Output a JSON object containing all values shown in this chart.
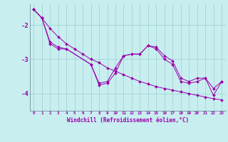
{
  "xlabel": "Windchill (Refroidissement éolien,°C)",
  "background_color": "#c8eef0",
  "grid_color": "#9ecece",
  "line_color": "#9900aa",
  "xlim": [
    -0.5,
    23.5
  ],
  "ylim": [
    -4.5,
    -1.4
  ],
  "yticks": [
    -4,
    -3,
    -2
  ],
  "xticks": [
    0,
    1,
    2,
    3,
    4,
    5,
    6,
    7,
    8,
    9,
    10,
    11,
    12,
    13,
    14,
    15,
    16,
    17,
    18,
    19,
    20,
    21,
    22,
    23
  ],
  "line1_x": [
    0,
    1,
    2,
    3,
    4,
    5,
    6,
    7,
    8,
    9,
    10,
    11,
    12,
    13,
    14,
    15,
    16,
    17,
    18,
    19,
    20,
    21,
    22,
    23
  ],
  "line1_y": [
    -1.55,
    -1.8,
    -2.1,
    -2.35,
    -2.55,
    -2.7,
    -2.85,
    -3.0,
    -3.1,
    -3.25,
    -3.35,
    -3.45,
    -3.55,
    -3.65,
    -3.72,
    -3.8,
    -3.85,
    -3.9,
    -3.95,
    -4.0,
    -4.05,
    -4.1,
    -4.15,
    -4.18
  ],
  "line2_x": [
    0,
    1,
    2,
    3,
    4,
    7,
    8,
    9,
    10,
    11,
    12,
    13,
    14,
    15,
    16,
    17,
    18,
    19,
    20,
    21,
    22,
    23
  ],
  "line2_y": [
    -1.55,
    -1.8,
    -2.5,
    -2.65,
    -2.7,
    -3.15,
    -3.7,
    -3.65,
    -3.25,
    -2.9,
    -2.85,
    -2.85,
    -2.6,
    -2.65,
    -2.9,
    -3.05,
    -3.55,
    -3.65,
    -3.55,
    -3.55,
    -3.85,
    -3.65
  ],
  "line3_x": [
    0,
    1,
    2,
    3,
    4,
    7,
    8,
    9,
    10,
    11,
    12,
    13,
    14,
    15,
    16,
    17,
    18,
    19,
    20,
    21,
    22,
    23
  ],
  "line3_y": [
    -1.55,
    -1.8,
    -2.55,
    -2.7,
    -2.7,
    -3.15,
    -3.75,
    -3.7,
    -3.4,
    -2.9,
    -2.85,
    -2.85,
    -2.6,
    -2.7,
    -3.0,
    -3.15,
    -3.65,
    -3.7,
    -3.65,
    -3.55,
    -4.05,
    -3.65
  ]
}
